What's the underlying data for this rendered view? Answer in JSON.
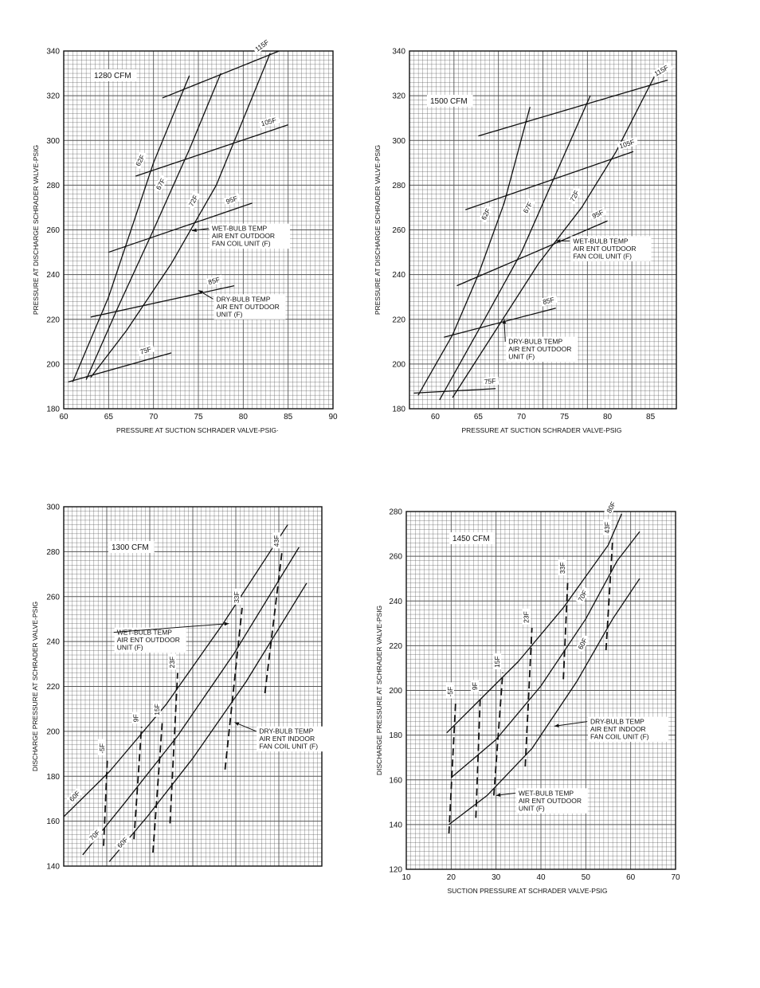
{
  "chart_data": [
    {
      "type": "line",
      "title": "1280 CFM",
      "xlabel": "PRESSURE AT SUCTION SCHRADER VALVE-PSIG·",
      "ylabel": "PRESSURE AT DISCHARGE SCHRADER VALVE-PSIG",
      "xlim": [
        60,
        90
      ],
      "ylim": [
        180,
        340
      ],
      "xticks": [
        60,
        65,
        70,
        75,
        80,
        85,
        90
      ],
      "yticks": [
        180,
        200,
        220,
        240,
        260,
        280,
        300,
        320,
        340
      ],
      "grid": true,
      "series": [
        {
          "name": "62F",
          "style": "solid",
          "points": [
            [
              61,
              192
            ],
            [
              65,
              230
            ],
            [
              70,
              290
            ],
            [
              74,
              329
            ]
          ]
        },
        {
          "name": "67F",
          "style": "solid",
          "points": [
            [
              62.5,
              193
            ],
            [
              66,
              225
            ],
            [
              70,
              260
            ],
            [
              74,
              296
            ],
            [
              77.5,
              330
            ]
          ]
        },
        {
          "name": "72F",
          "style": "solid",
          "points": [
            [
              63,
              194
            ],
            [
              67,
              215
            ],
            [
              72,
              245
            ],
            [
              77,
              280
            ],
            [
              83,
              339
            ]
          ]
        },
        {
          "name": "115F",
          "style": "solid",
          "points": [
            [
              71,
              319
            ],
            [
              84,
              340
            ]
          ]
        },
        {
          "name": "105F",
          "style": "solid",
          "points": [
            [
              68,
              284
            ],
            [
              85,
              307
            ]
          ]
        },
        {
          "name": "95F",
          "style": "solid",
          "points": [
            [
              65,
              250
            ],
            [
              81,
              272
            ]
          ]
        },
        {
          "name": "85F",
          "style": "solid",
          "points": [
            [
              63,
              221
            ],
            [
              79,
              235
            ]
          ]
        },
        {
          "name": "75F",
          "style": "solid",
          "points": [
            [
              60.5,
              192
            ],
            [
              72,
              205
            ]
          ]
        }
      ],
      "annotations": [
        {
          "lines": [
            "WET-BULB TEMP",
            "AIR ENT OUTDOOR",
            "FAN COIL UNIT (F)"
          ],
          "at": [
            76.5,
            259.6
          ],
          "arrow_to": [
            74.3,
            259.6
          ]
        },
        {
          "lines": [
            "DRY-BULB TEMP",
            "AIR ENT OUTDOOR",
            "UNIT (F)"
          ],
          "at": [
            77,
            228
          ],
          "arrow_to": [
            75,
            233
          ]
        }
      ]
    },
    {
      "type": "line",
      "title": "1500 CFM",
      "xlabel": "PRESSURE AT SUCTION SCHRADER VALVE-PSIG",
      "ylabel": "PRESSURE AT DISCHARGE SCHRADER VALVE-PSIG",
      "xlim": [
        57,
        88
      ],
      "ylim": [
        180,
        340
      ],
      "xticks": [
        60,
        65,
        70,
        75,
        80,
        85
      ],
      "yticks": [
        180,
        200,
        220,
        240,
        260,
        280,
        300,
        320,
        340
      ],
      "grid": true,
      "series": [
        {
          "name": "62F",
          "style": "solid",
          "points": [
            [
              58,
              186
            ],
            [
              62,
              213
            ],
            [
              65,
              240
            ],
            [
              68,
              272
            ],
            [
              71,
              315
            ]
          ]
        },
        {
          "name": "67F",
          "style": "solid",
          "points": [
            [
              60.5,
              184
            ],
            [
              65,
              215
            ],
            [
              70,
              250
            ],
            [
              74,
              285
            ],
            [
              78,
              320
            ]
          ]
        },
        {
          "name": "72F",
          "style": "solid",
          "points": [
            [
              62,
              185
            ],
            [
              67,
              215
            ],
            [
              72,
              245
            ],
            [
              77,
              270
            ],
            [
              81,
              295
            ],
            [
              85.5,
              329
            ]
          ]
        },
        {
          "name": "115F",
          "style": "solid",
          "points": [
            [
              65,
              302
            ],
            [
              87,
              327
            ]
          ]
        },
        {
          "name": "105F",
          "style": "solid",
          "points": [
            [
              63.5,
              269
            ],
            [
              83,
              295
            ]
          ]
        },
        {
          "name": "95F",
          "style": "solid",
          "points": [
            [
              62.5,
              235
            ],
            [
              80,
              264
            ]
          ]
        },
        {
          "name": "85F",
          "style": "solid",
          "points": [
            [
              61,
              212
            ],
            [
              74,
              225
            ]
          ]
        },
        {
          "name": "75F",
          "style": "solid",
          "points": [
            [
              57.5,
              187
            ],
            [
              67,
              189
            ]
          ]
        }
      ],
      "annotations": [
        {
          "lines": [
            "WET-BULB TEMP",
            "AIR ENT OUTDOOR",
            "FAN COIL UNIT (F)"
          ],
          "at": [
            76,
            254
          ],
          "arrow_to": [
            74,
            255
          ]
        },
        {
          "lines": [
            "DRY-BULB TEMP",
            "AIR ENT OUTDOOR",
            "UNIT (F)"
          ],
          "at": [
            68.5,
            209
          ],
          "arrow_to": [
            68,
            220
          ]
        }
      ]
    },
    {
      "type": "line",
      "title": "1300 CFM",
      "xlabel": "",
      "ylabel": "DISCHARGE PRESSURE AT SCHRADER VALVE-PSIG",
      "xlim": [
        8,
        76
      ],
      "ylim": [
        140,
        300
      ],
      "xticks": [],
      "yticks": [
        140,
        160,
        180,
        200,
        220,
        240,
        260,
        280,
        300
      ],
      "grid": true,
      "series": [
        {
          "name": "60F",
          "style": "solid",
          "points": [
            [
              8,
              162
            ],
            [
              20,
              182
            ],
            [
              35,
              212
            ],
            [
              50,
              248
            ],
            [
              67,
              292
            ]
          ]
        },
        {
          "name": "70F",
          "style": "solid",
          "points": [
            [
              13,
              145
            ],
            [
              24,
              168
            ],
            [
              38,
              198
            ],
            [
              53,
              235
            ],
            [
              70,
              282
            ]
          ]
        },
        {
          "name": "60F",
          "style": "solid",
          "points": [
            [
              20,
              142
            ],
            [
              30,
              162
            ],
            [
              42,
              188
            ],
            [
              56,
              222
            ],
            [
              72,
              266
            ]
          ]
        },
        {
          "name": "-5F",
          "style": "dashed",
          "points": [
            [
              18.5,
              149
            ],
            [
              19.5,
              188
            ]
          ]
        },
        {
          "name": "9F",
          "style": "dashed",
          "points": [
            [
              26.5,
              152
            ],
            [
              28.5,
              202
            ]
          ]
        },
        {
          "name": "15F",
          "style": "dashed",
          "points": [
            [
              31.5,
              146
            ],
            [
              34,
              205
            ]
          ]
        },
        {
          "name": "23F",
          "style": "dashed",
          "points": [
            [
              36,
              159
            ],
            [
              38,
              226
            ]
          ]
        },
        {
          "name": "33F",
          "style": "dashed",
          "points": [
            [
              50.5,
              183
            ],
            [
              55,
              255
            ]
          ]
        },
        {
          "name": "43F",
          "style": "dashed",
          "points": [
            [
              61,
              217
            ],
            [
              65.5,
              280
            ]
          ]
        }
      ],
      "annotations": [
        {
          "lines": [
            "WET-BULB TEMP",
            "AIR ENT OUTDOOR",
            "UNIT (F)"
          ],
          "at": [
            22,
            243
          ],
          "arrow_to": [
            51.5,
            248
          ]
        },
        {
          "lines": [
            "DRY-BULB TEMP",
            "AIR ENT INDOOR",
            "FAN COIL UNIT (F)"
          ],
          "at": [
            59.5,
            199
          ],
          "arrow_to": [
            53,
            204
          ]
        }
      ]
    },
    {
      "type": "line",
      "title": "1450 CFM",
      "xlabel": "SUCTION PRESSURE AT SCHRADER VALVE-PSIG",
      "ylabel": "DISCHARGE PRESSURE AT SCHRADER VALVE-PSIG",
      "xlim": [
        10,
        70
      ],
      "ylim": [
        120,
        280
      ],
      "xticks": [
        10,
        20,
        30,
        40,
        50,
        60,
        70
      ],
      "yticks": [
        120,
        140,
        160,
        180,
        200,
        220,
        240,
        260,
        280
      ],
      "grid": true,
      "series": [
        {
          "name": "80F",
          "style": "solid",
          "points": [
            [
              19,
              181
            ],
            [
              25,
              193
            ],
            [
              35,
              213
            ],
            [
              45,
              237
            ],
            [
              55,
              265
            ],
            [
              58,
              279
            ]
          ]
        },
        {
          "name": "70F",
          "style": "solid",
          "points": [
            [
              20,
              161
            ],
            [
              30,
              178
            ],
            [
              40,
              202
            ],
            [
              50,
              232
            ],
            [
              57,
              258
            ],
            [
              62,
              271
            ]
          ]
        },
        {
          "name": "60F",
          "style": "solid",
          "points": [
            [
              19.5,
              140
            ],
            [
              28,
              153
            ],
            [
              38,
              174
            ],
            [
              48,
              204
            ],
            [
              56,
              232
            ],
            [
              62,
              250
            ]
          ]
        },
        {
          "name": "-5F",
          "style": "dashed",
          "points": [
            [
              19.5,
              136
            ],
            [
              21,
              195
            ]
          ]
        },
        {
          "name": "9F",
          "style": "dashed",
          "points": [
            [
              25.5,
              143
            ],
            [
              26.5,
              198
            ]
          ]
        },
        {
          "name": "15F",
          "style": "dashed",
          "points": [
            [
              29.5,
              153
            ],
            [
              31.5,
              208
            ]
          ]
        },
        {
          "name": "23F",
          "style": "dashed",
          "points": [
            [
              36.5,
              166
            ],
            [
              38,
              228
            ]
          ]
        },
        {
          "name": "33F",
          "style": "dashed",
          "points": [
            [
              45,
              205
            ],
            [
              46,
              250
            ]
          ]
        },
        {
          "name": "43F",
          "style": "dashed",
          "points": [
            [
              54.5,
              218
            ],
            [
              56,
              268
            ]
          ]
        }
      ],
      "annotations": [
        {
          "lines": [
            "DRY-BULB TEMP",
            "AIR ENT INDOOR",
            "FAN COIL UNIT (F)"
          ],
          "at": [
            51,
            185
          ],
          "arrow_to": [
            43,
            184
          ]
        },
        {
          "lines": [
            "WET-BULB TEMP",
            "AIR ENT OUTDOOR",
            "UNIT (F)"
          ],
          "at": [
            35,
            153
          ],
          "arrow_to": [
            30,
            153
          ]
        }
      ]
    }
  ]
}
